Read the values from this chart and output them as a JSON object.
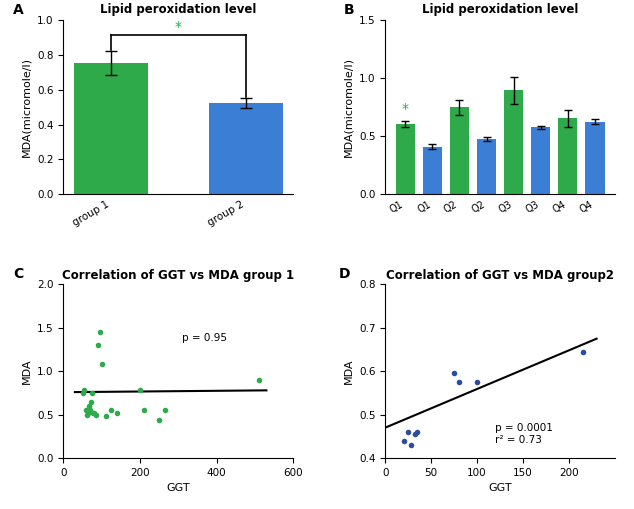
{
  "panel_A": {
    "title": "Lipid peroxidation level",
    "categories": [
      "group 1",
      "group 2"
    ],
    "values": [
      0.755,
      0.525
    ],
    "errors": [
      0.07,
      0.03
    ],
    "colors": [
      "#2eaa4a",
      "#3a7fd5"
    ],
    "ylabel": "MDA(micromole/l)",
    "ylim": [
      0,
      1.0
    ],
    "yticks": [
      0.0,
      0.2,
      0.4,
      0.6,
      0.8,
      1.0
    ],
    "sig_star_color": "#2eaa4a",
    "label": "A"
  },
  "panel_B": {
    "title": "Lipid peroxidation level",
    "categories": [
      "Q1",
      "Q1",
      "Q2",
      "Q2",
      "Q3",
      "Q3",
      "Q4",
      "Q4"
    ],
    "values": [
      0.605,
      0.41,
      0.75,
      0.475,
      0.895,
      0.575,
      0.655,
      0.625
    ],
    "errors": [
      0.03,
      0.02,
      0.065,
      0.015,
      0.12,
      0.01,
      0.075,
      0.02
    ],
    "colors": [
      "#2eaa4a",
      "#3a7fd5",
      "#2eaa4a",
      "#3a7fd5",
      "#2eaa4a",
      "#3a7fd5",
      "#2eaa4a",
      "#3a7fd5"
    ],
    "ylabel": "MDA(micromole/l)",
    "ylim": [
      0,
      1.5
    ],
    "yticks": [
      0.0,
      0.5,
      1.0,
      1.5
    ],
    "sig_star_color": "#2eaa4a",
    "label": "B"
  },
  "panel_C": {
    "title": "Correlation of GGT vs MDA group 1",
    "xlabel": "GGT",
    "ylabel": "MDA",
    "xlim": [
      0,
      600
    ],
    "ylim": [
      0.0,
      2.0
    ],
    "xticks": [
      0,
      200,
      400,
      600
    ],
    "yticks": [
      0.0,
      0.5,
      1.0,
      1.5,
      2.0
    ],
    "color": "#2eaa4a",
    "scatter_x": [
      50,
      55,
      58,
      62,
      65,
      68,
      70,
      72,
      75,
      78,
      80,
      85,
      90,
      95,
      100,
      110,
      125,
      140,
      200,
      210,
      250,
      265,
      510
    ],
    "scatter_y": [
      0.75,
      0.78,
      0.55,
      0.5,
      0.52,
      0.6,
      0.55,
      0.65,
      0.75,
      0.52,
      0.52,
      0.5,
      1.3,
      1.45,
      1.08,
      0.48,
      0.55,
      0.52,
      0.78,
      0.55,
      0.44,
      0.55,
      0.9
    ],
    "line_x": [
      30,
      530
    ],
    "line_y": [
      0.76,
      0.78
    ],
    "annotation": "p = 0.95",
    "ann_x": 310,
    "ann_y": 1.35,
    "label": "C"
  },
  "panel_D": {
    "title": "Correlation of GGT vs MDA group2",
    "xlabel": "GGT",
    "ylabel": "MDA",
    "xlim": [
      0,
      250
    ],
    "ylim": [
      0.4,
      0.8
    ],
    "xticks": [
      0,
      50,
      100,
      150,
      200
    ],
    "yticks": [
      0.4,
      0.5,
      0.6,
      0.7,
      0.8
    ],
    "color": "#2b4d9e",
    "scatter_x": [
      20,
      25,
      28,
      32,
      35,
      75,
      80,
      100,
      215
    ],
    "scatter_y": [
      0.44,
      0.46,
      0.43,
      0.455,
      0.46,
      0.595,
      0.575,
      0.575,
      0.645
    ],
    "line_x": [
      0,
      230
    ],
    "line_y": [
      0.47,
      0.675
    ],
    "annotation": "p = 0.0001\nr² = 0.73",
    "ann_x": 120,
    "ann_y": 0.435,
    "label": "D"
  },
  "background_color": "#ffffff",
  "label_fontsize": 10,
  "title_fontsize": 8.5,
  "tick_fontsize": 7.5,
  "axis_label_fontsize": 8
}
